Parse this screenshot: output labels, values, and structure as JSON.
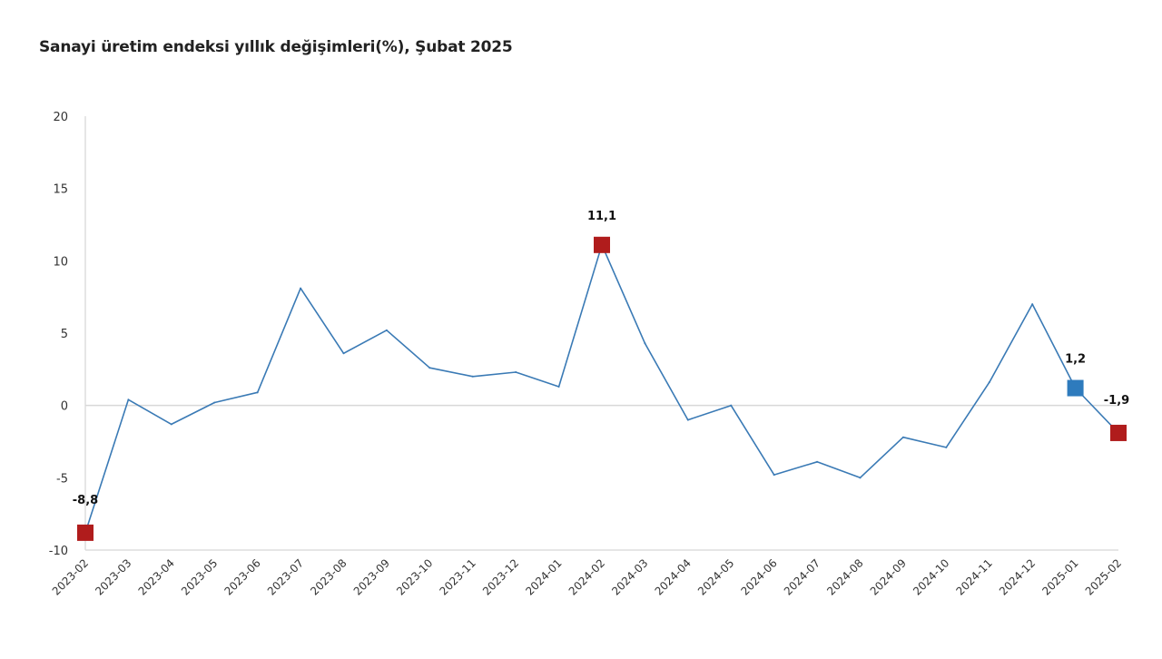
{
  "chart_data": {
    "type": "line",
    "title": "Sanayi üretim endeksi yıllık değişimleri(%), Şubat 2025",
    "xlabel": "",
    "ylabel": "",
    "ylim": [
      -10,
      20
    ],
    "yticks": [
      "20",
      "15",
      "10",
      "5",
      "0",
      "-5",
      "-10"
    ],
    "ytick_values": [
      20,
      15,
      10,
      5,
      0,
      -5,
      -10
    ],
    "grid": false,
    "categories": [
      "2023-02",
      "2023-03",
      "2023-04",
      "2023-05",
      "2023-06",
      "2023-07",
      "2023-08",
      "2023-09",
      "2023-10",
      "2023-11",
      "2023-12",
      "2024-01",
      "2024-02",
      "2024-03",
      "2024-04",
      "2024-05",
      "2024-06",
      "2024-07",
      "2024-08",
      "2024-09",
      "2024-10",
      "2024-11",
      "2024-12",
      "2025-01",
      "2025-02"
    ],
    "series": [
      {
        "name": "Sanayi üretim endeksi yıllık değişim (%)",
        "color": "#3a7ab5",
        "values": [
          -8.8,
          0.4,
          -1.3,
          0.2,
          0.9,
          8.1,
          3.6,
          5.2,
          2.6,
          2.0,
          2.3,
          1.3,
          11.1,
          4.3,
          -1.0,
          0.0,
          -4.8,
          -3.9,
          -5.0,
          -2.2,
          -2.9,
          1.6,
          7.0,
          1.2,
          -1.9
        ]
      }
    ],
    "highlights": [
      {
        "category": "2023-02",
        "value": -8.8,
        "label": "-8,8",
        "color": "#b01c1c"
      },
      {
        "category": "2024-02",
        "value": 11.1,
        "label": "11,1",
        "color": "#b01c1c"
      },
      {
        "category": "2025-01",
        "value": 1.2,
        "label": "1,2",
        "color": "#2e7bbd"
      },
      {
        "category": "2025-02",
        "value": -1.9,
        "label": "-1,9",
        "color": "#b01c1c"
      }
    ]
  }
}
